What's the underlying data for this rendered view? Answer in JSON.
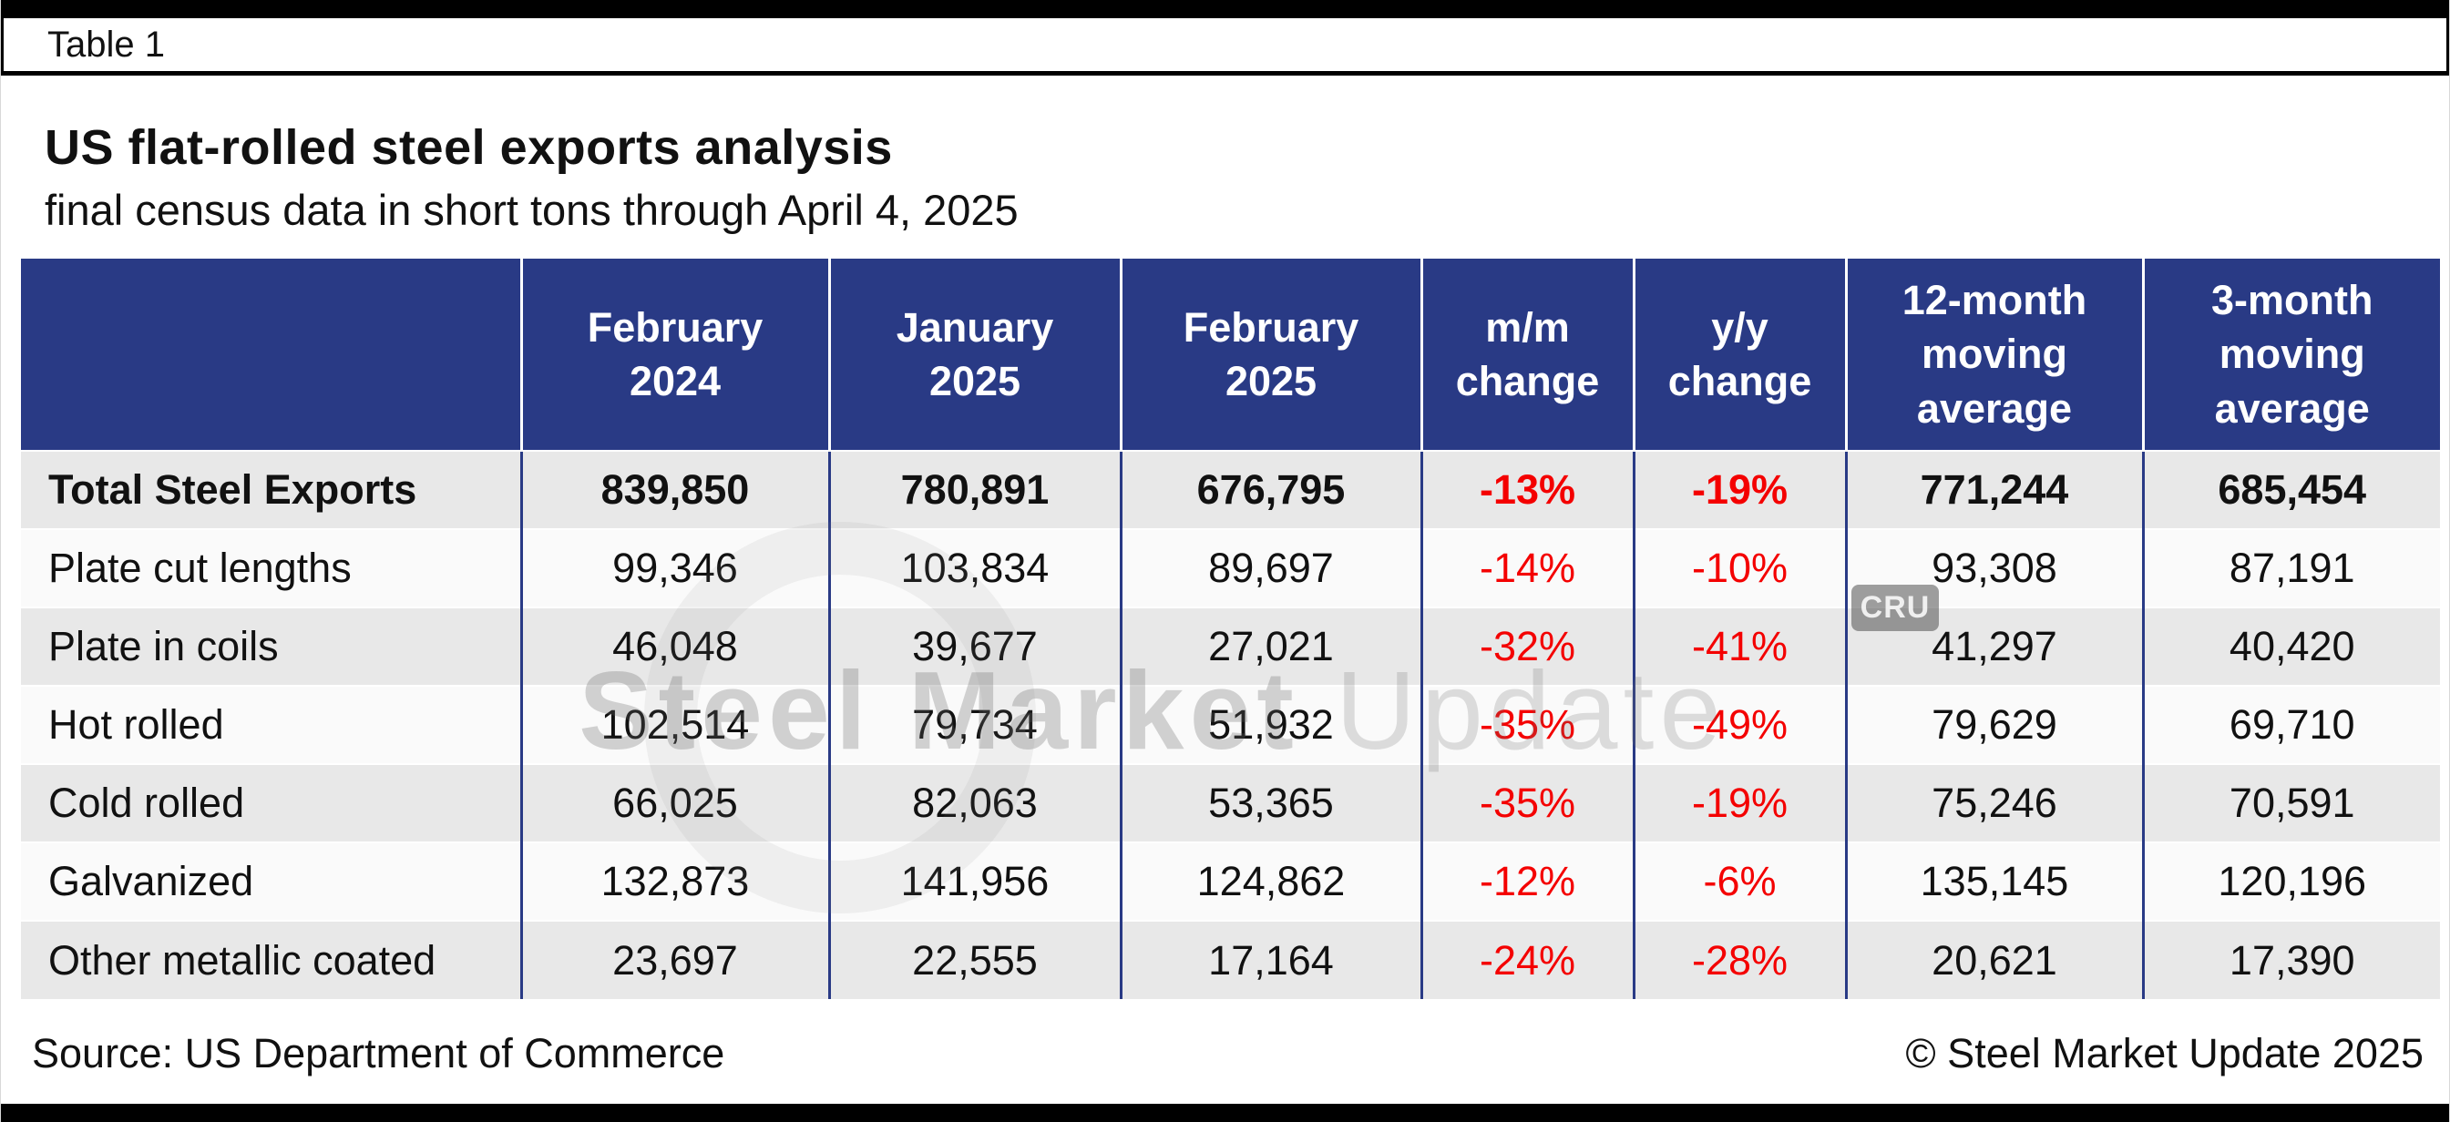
{
  "page": {
    "tab_label": "Table 1",
    "title": "US flat-rolled steel exports analysis",
    "subtitle": "final census data in short tons through April 4, 2025",
    "source": "Source: US Department of Commerce",
    "copyright": "© Steel Market Update 2025",
    "watermark_bold": "Steel Market",
    "watermark_light": "Update",
    "watermark_badge": "CRU"
  },
  "colors": {
    "header_bg": "#293a85",
    "body_line": "#293a85",
    "negative": "#f40000",
    "row_alt": "#e8e8e8",
    "row_base": "#fafafa",
    "bar": "#000000"
  },
  "chart_data": {
    "type": "table",
    "title": "US flat-rolled steel exports analysis",
    "subtitle": "final census data in short tons through April 4, 2025",
    "columns": [
      "",
      "February\n2024",
      "January\n2025",
      "February\n2025",
      "m/m\nchange",
      "y/y\nchange",
      "12-month\nmoving\naverage",
      "3-month\nmoving\naverage"
    ],
    "percent_columns": [
      3,
      4
    ],
    "rows": [
      {
        "label": "Total Steel Exports",
        "bold": true,
        "values": [
          "839,850",
          "780,891",
          "676,795",
          "-13%",
          "-19%",
          "771,244",
          "685,454"
        ]
      },
      {
        "label": "Plate cut lengths",
        "bold": false,
        "values": [
          "99,346",
          "103,834",
          "89,697",
          "-14%",
          "-10%",
          "93,308",
          "87,191"
        ]
      },
      {
        "label": "Plate in coils",
        "bold": false,
        "values": [
          "46,048",
          "39,677",
          "27,021",
          "-32%",
          "-41%",
          "41,297",
          "40,420"
        ]
      },
      {
        "label": "Hot rolled",
        "bold": false,
        "values": [
          "102,514",
          "79,734",
          "51,932",
          "-35%",
          "-49%",
          "79,629",
          "69,710"
        ]
      },
      {
        "label": "Cold rolled",
        "bold": false,
        "values": [
          "66,025",
          "82,063",
          "53,365",
          "-35%",
          "-19%",
          "75,246",
          "70,591"
        ]
      },
      {
        "label": "Galvanized",
        "bold": false,
        "values": [
          "132,873",
          "141,956",
          "124,862",
          "-12%",
          "-6%",
          "135,145",
          "120,196"
        ]
      },
      {
        "label": "Other metallic coated",
        "bold": false,
        "values": [
          "23,697",
          "22,555",
          "17,164",
          "-24%",
          "-28%",
          "20,621",
          "17,390"
        ]
      }
    ]
  }
}
